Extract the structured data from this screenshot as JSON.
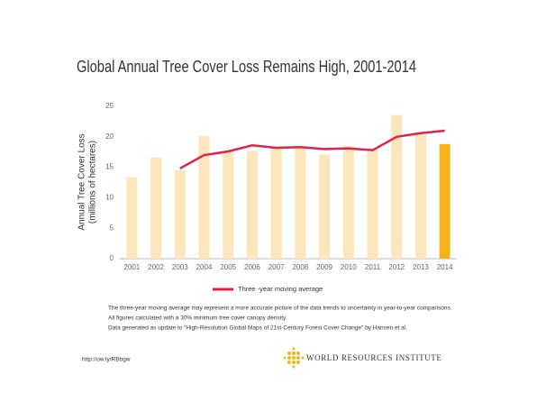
{
  "chart_data": {
    "type": "bar",
    "title": "Global Annual Tree Cover Loss Remains High, 2001-2014",
    "y_label": [
      "Annual Tree Cover Loss",
      "(millions of hectares)"
    ],
    "categories": [
      "2001",
      "2002",
      "2003",
      "2004",
      "2005",
      "2006",
      "2007",
      "2008",
      "2009",
      "2010",
      "2011",
      "2012",
      "2013",
      "2014"
    ],
    "ylim": [
      0,
      25
    ],
    "yticks": [
      0,
      5,
      10,
      15,
      20,
      25
    ],
    "grid": false,
    "series": [
      {
        "type": "bar",
        "colors": [
          "#fde6bb",
          "#fde6bb",
          "#fde6bb",
          "#fde6bb",
          "#fde6bb",
          "#fde6bb",
          "#fde6bb",
          "#fde6bb",
          "#fde6bb",
          "#fde6bb",
          "#fde6bb",
          "#fde6bb",
          "#fde6bb",
          "#f5b41c"
        ],
        "values": [
          13.4,
          16.6,
          14.5,
          20.1,
          17.6,
          17.7,
          18.3,
          18.3,
          17.1,
          18.5,
          17.9,
          23.6,
          20.3,
          18.8
        ]
      },
      {
        "type": "line",
        "name": "Three -year moving average",
        "color": "#e0234a",
        "values": [
          null,
          null,
          14.8,
          17.0,
          17.6,
          18.6,
          18.2,
          18.3,
          18.0,
          18.1,
          17.8,
          20.0,
          20.6,
          21.0
        ]
      }
    ],
    "notes": [
      "The three-year moving average may represent a more accurate picture of the data trends to uncertainty in year-to-year comparisons.",
      "All figures calculated with a 30% minimum tree cover canopy density.",
      "Data generated as update to “High-Resolution Global Maps of 21st-Century Forest Cover Change” by Hansen et al."
    ],
    "source_url": "http://ow.ly/RBbgw",
    "logo_text": "WORLD RESOURCES INSTITUTE"
  }
}
